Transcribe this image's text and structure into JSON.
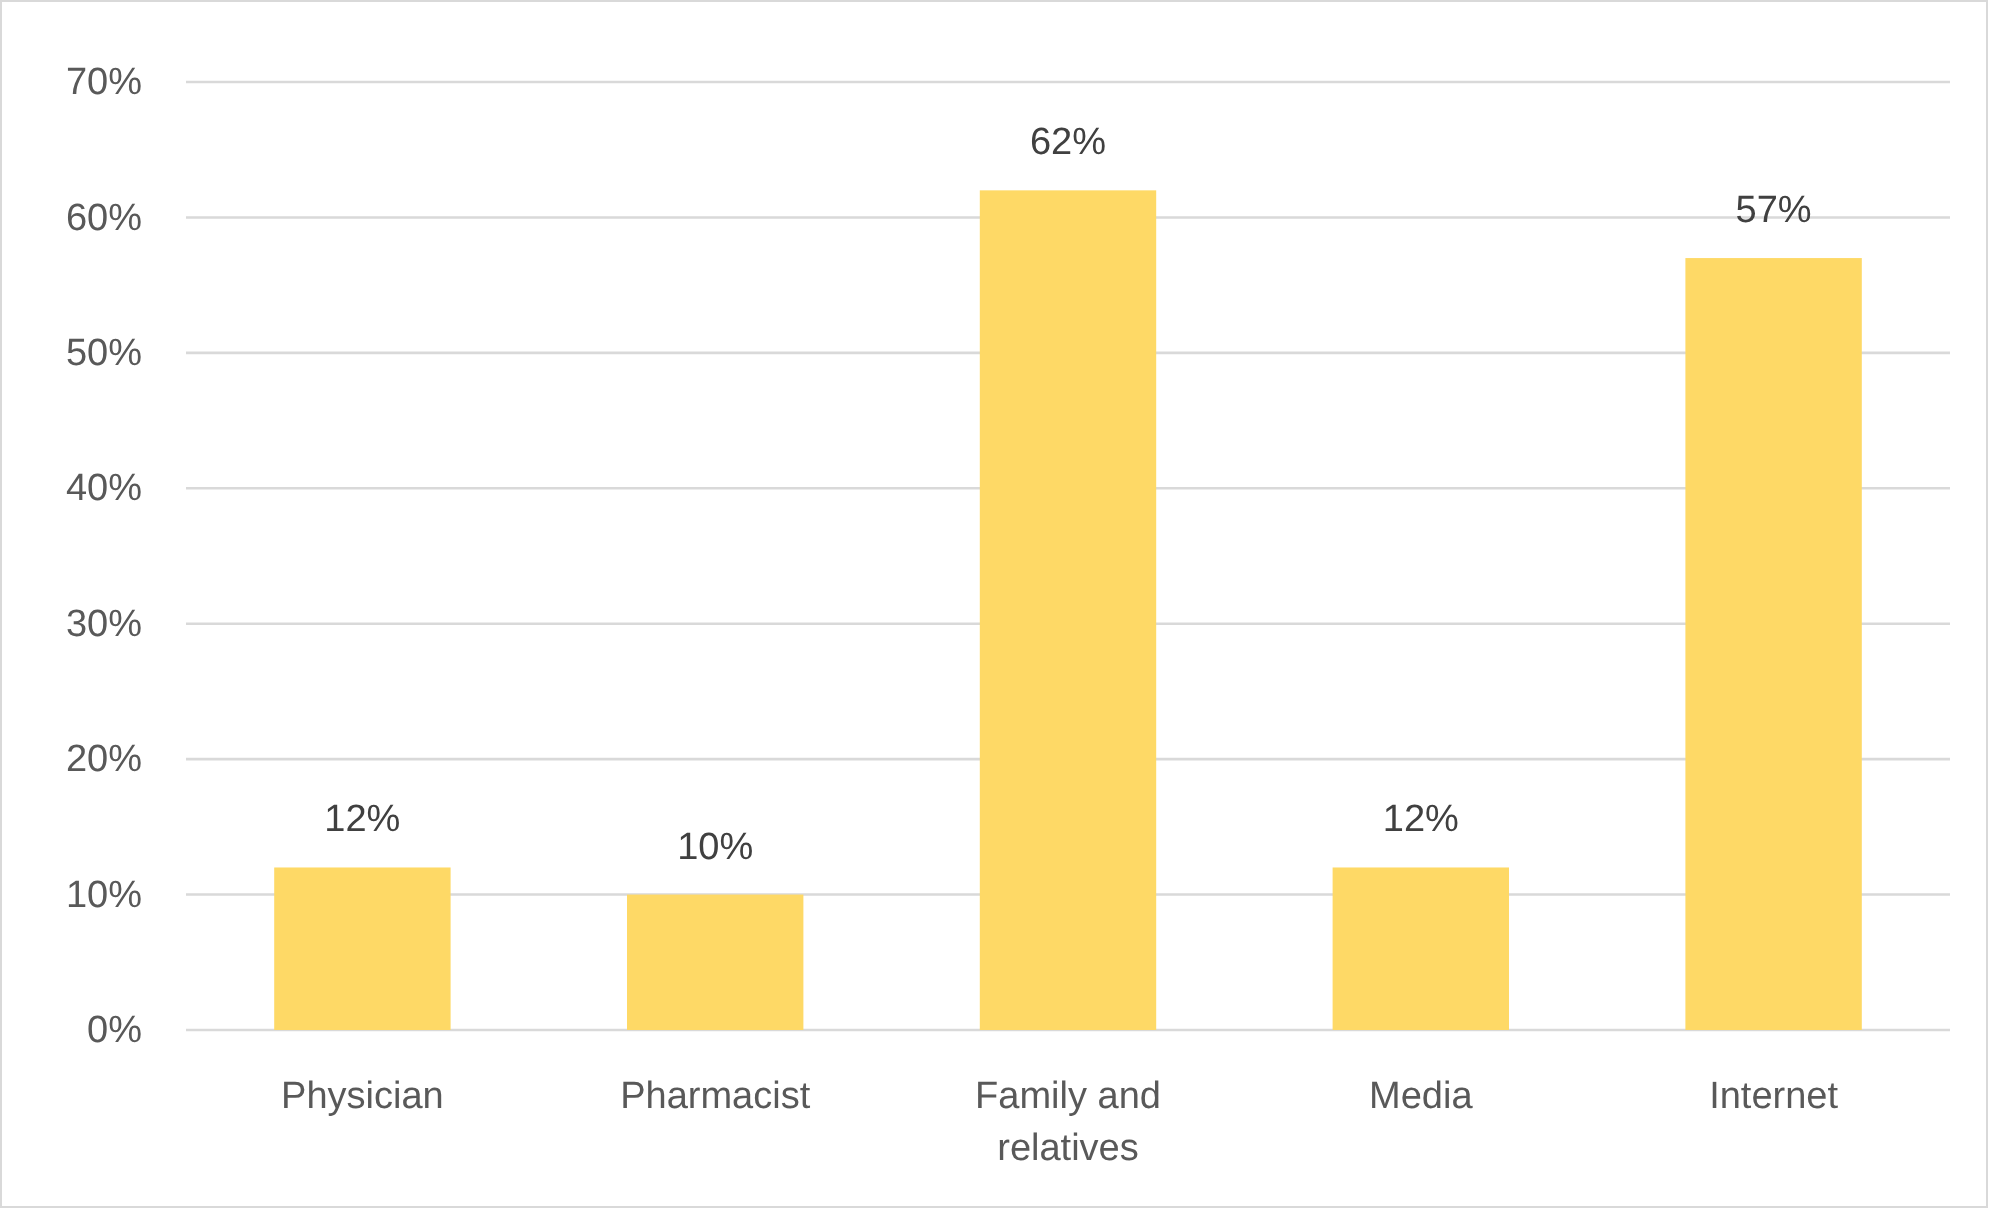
{
  "chart_data": {
    "type": "bar",
    "categories": [
      "Physician",
      "Pharmacist",
      "Family and relatives",
      "Media",
      "Internet"
    ],
    "values": [
      12,
      10,
      62,
      12,
      57
    ],
    "value_labels": [
      "12%",
      "10%",
      "62%",
      "12%",
      "57%"
    ],
    "color": "#fed966",
    "ylim": [
      0,
      70
    ],
    "yticks": [
      {
        "value": 0,
        "label": "0%"
      },
      {
        "value": 10,
        "label": "10%"
      },
      {
        "value": 20,
        "label": "20%"
      },
      {
        "value": 30,
        "label": "30%"
      },
      {
        "value": 40,
        "label": "40%"
      },
      {
        "value": 50,
        "label": "50%"
      },
      {
        "value": 60,
        "label": "60%"
      },
      {
        "value": 70,
        "label": "70%"
      }
    ],
    "grid": "y"
  }
}
